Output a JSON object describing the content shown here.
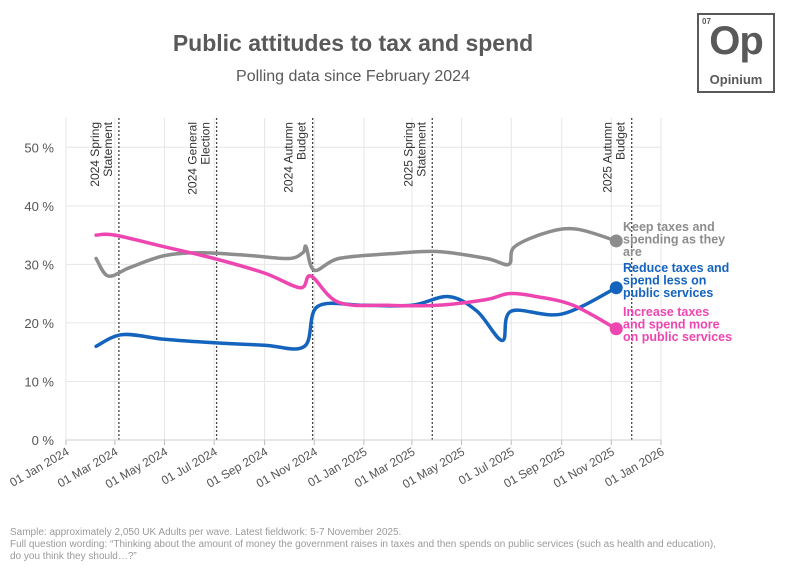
{
  "chart_data": {
    "type": "line",
    "title": "Public attitudes to tax and spend",
    "subtitle": "Polling data since February 2024",
    "ylim": [
      0,
      55
    ],
    "yticks": [
      {
        "value": 0,
        "label": "0 %"
      },
      {
        "value": 10,
        "label": "10 %"
      },
      {
        "value": 20,
        "label": "20 %"
      },
      {
        "value": 30,
        "label": "30 %"
      },
      {
        "value": 40,
        "label": "40 %"
      },
      {
        "value": 50,
        "label": "50 %"
      }
    ],
    "xlim": [
      "2024-01-01",
      "2026-01-01"
    ],
    "xticks": [
      {
        "date": "2024-01-01",
        "label": "01 Jan 2024"
      },
      {
        "date": "2024-03-01",
        "label": "01 Mar 2024"
      },
      {
        "date": "2024-05-01",
        "label": "01 May 2024"
      },
      {
        "date": "2024-07-01",
        "label": "01 Jul 2024"
      },
      {
        "date": "2024-09-01",
        "label": "01 Sep 2024"
      },
      {
        "date": "2024-11-01",
        "label": "01 Nov 2024"
      },
      {
        "date": "2025-01-01",
        "label": "01 Jan 2025"
      },
      {
        "date": "2025-03-01",
        "label": "01 Mar 2025"
      },
      {
        "date": "2025-05-01",
        "label": "01 May 2025"
      },
      {
        "date": "2025-07-01",
        "label": "01 Jul 2025"
      },
      {
        "date": "2025-09-01",
        "label": "01 Sep 2025"
      },
      {
        "date": "2025-11-01",
        "label": "01 Nov 2025"
      },
      {
        "date": "2026-01-01",
        "label": "01 Jan 2026"
      }
    ],
    "events": [
      {
        "date": "2024-03-06",
        "lines": [
          "2024 Spring",
          "Statement"
        ]
      },
      {
        "date": "2024-07-04",
        "lines": [
          "2024 General",
          "Election"
        ]
      },
      {
        "date": "2024-10-30",
        "lines": [
          "2024 Autumn",
          "Budget"
        ]
      },
      {
        "date": "2025-03-26",
        "lines": [
          "2025 Spring",
          "Statement"
        ]
      },
      {
        "date": "2025-11-26",
        "lines": [
          "2025 Autumn",
          "Budget"
        ]
      }
    ],
    "series": [
      {
        "name": "Keep taxes and spending as they are",
        "label_lines": [
          "Keep taxes and",
          "spending as they",
          "are"
        ],
        "color": "#8c8d8c",
        "latest": 34,
        "points": [
          [
            "2024-02-07",
            31
          ],
          [
            "2024-02-22",
            28
          ],
          [
            "2024-03-20",
            29.5
          ],
          [
            "2024-05-01",
            31.5
          ],
          [
            "2024-06-15",
            32
          ],
          [
            "2024-08-15",
            31.5
          ],
          [
            "2024-10-01",
            31
          ],
          [
            "2024-10-18",
            32
          ],
          [
            "2024-10-22",
            33
          ],
          [
            "2024-11-01",
            29
          ],
          [
            "2024-12-01",
            31
          ],
          [
            "2025-02-01",
            31.8
          ],
          [
            "2025-04-01",
            32.2
          ],
          [
            "2025-06-01",
            31
          ],
          [
            "2025-06-28",
            30
          ],
          [
            "2025-07-05",
            33
          ],
          [
            "2025-08-15",
            35.5
          ],
          [
            "2025-09-20",
            36
          ],
          [
            "2025-11-07",
            34
          ]
        ]
      },
      {
        "name": "Reduce taxes and spend less on public services",
        "label_lines": [
          "Reduce taxes and",
          "spend less on",
          "public services"
        ],
        "color": "#1464be",
        "latest": 26,
        "points": [
          [
            "2024-02-07",
            16
          ],
          [
            "2024-03-10",
            18
          ],
          [
            "2024-05-01",
            17.2
          ],
          [
            "2024-07-01",
            16.6
          ],
          [
            "2024-09-01",
            16.2
          ],
          [
            "2024-10-20",
            16
          ],
          [
            "2024-11-05",
            22.8
          ],
          [
            "2025-01-01",
            23
          ],
          [
            "2025-03-01",
            23
          ],
          [
            "2025-04-15",
            24.5
          ],
          [
            "2025-05-20",
            22
          ],
          [
            "2025-06-20",
            17
          ],
          [
            "2025-07-01",
            22
          ],
          [
            "2025-09-01",
            21.5
          ],
          [
            "2025-11-07",
            26
          ]
        ]
      },
      {
        "name": "Increase taxes and spend more on public services",
        "label_lines": [
          "Increase taxes",
          "and spend more",
          "on public services"
        ],
        "color": "#ee46b1",
        "latest": 19,
        "points": [
          [
            "2024-02-07",
            35
          ],
          [
            "2024-03-01",
            35
          ],
          [
            "2024-05-01",
            33
          ],
          [
            "2024-07-01",
            31
          ],
          [
            "2024-09-01",
            28.5
          ],
          [
            "2024-10-15",
            26
          ],
          [
            "2024-10-28",
            28
          ],
          [
            "2024-12-01",
            23.5
          ],
          [
            "2025-02-01",
            23
          ],
          [
            "2025-04-01",
            23
          ],
          [
            "2025-06-01",
            24
          ],
          [
            "2025-06-28",
            25
          ],
          [
            "2025-08-01",
            24.5
          ],
          [
            "2025-09-15",
            23
          ],
          [
            "2025-11-07",
            19
          ]
        ]
      }
    ]
  },
  "logo": {
    "number": "07",
    "symbol": "Op",
    "name": "Opinium"
  },
  "footnote": {
    "line1": "Sample: approximately 2,050 UK Adults per wave. Latest fieldwork: 5-7 November 2025.",
    "line2": "Full question wording: “Thinking about the amount of money the government raises in taxes and then spends on public services (such as health and education),",
    "line3": "do you think they should…?”"
  }
}
